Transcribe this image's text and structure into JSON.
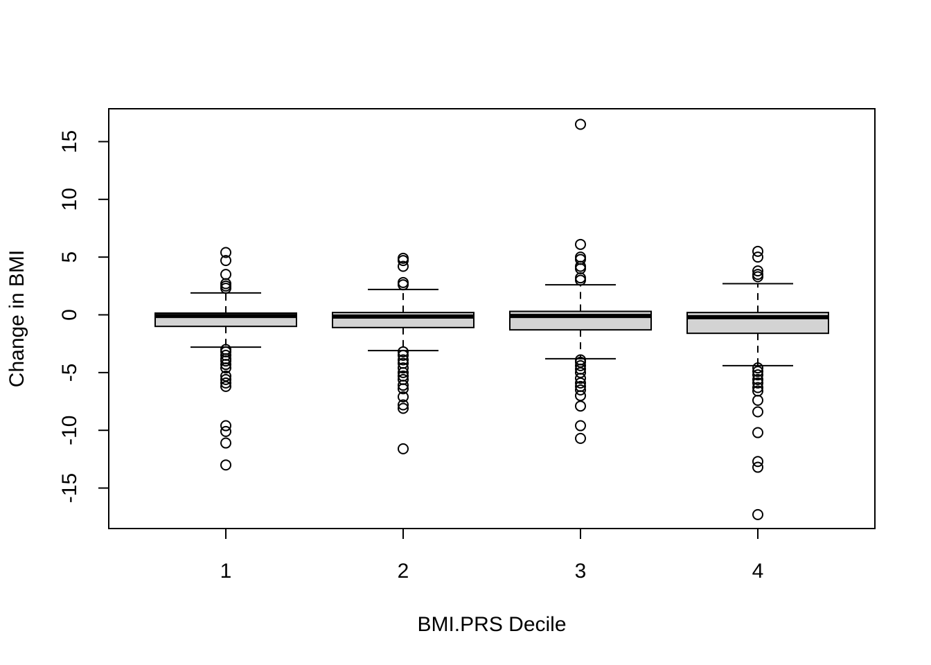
{
  "chart_data": {
    "type": "boxplot",
    "title": "",
    "xlabel": "BMI.PRS Decile",
    "ylabel": "Change in BMI",
    "categories": [
      "1",
      "2",
      "3",
      "4"
    ],
    "ylim": [
      -18.5,
      18
    ],
    "yticks": [
      -15,
      -10,
      -5,
      0,
      5,
      10,
      15
    ],
    "ytick_labels": [
      "-15",
      "-10",
      "-5",
      "0",
      "5",
      "10",
      "15"
    ],
    "grid": false,
    "box_fill": "#d3d3d3",
    "boxes": [
      {
        "category": "1",
        "whisker_low": -2.8,
        "q1": -1.0,
        "median": -0.1,
        "q3": 0.15,
        "whisker_high": 1.9,
        "outliers": [
          5.4,
          4.7,
          3.5,
          2.7,
          2.5,
          2.3,
          -3.0,
          -3.2,
          -3.5,
          -3.8,
          -4.0,
          -4.3,
          -4.6,
          -5.3,
          -5.6,
          -5.9,
          -6.2,
          -9.6,
          -10.1,
          -11.1,
          -13.0
        ]
      },
      {
        "category": "2",
        "whisker_low": -3.1,
        "q1": -1.1,
        "median": -0.15,
        "q3": 0.2,
        "whisker_high": 2.2,
        "outliers": [
          4.9,
          4.7,
          4.2,
          2.8,
          2.6,
          -3.2,
          -3.5,
          -3.9,
          -4.2,
          -4.6,
          -5.0,
          -5.3,
          -5.6,
          -6.1,
          -6.4,
          -7.1,
          -7.8,
          -8.1,
          -11.6
        ]
      },
      {
        "category": "3",
        "whisker_low": -3.8,
        "q1": -1.3,
        "median": -0.1,
        "q3": 0.3,
        "whisker_high": 2.6,
        "outliers": [
          16.5,
          6.1,
          5.0,
          4.8,
          4.2,
          4.0,
          3.2,
          3.0,
          -3.9,
          -4.1,
          -4.4,
          -4.7,
          -5.0,
          -5.5,
          -5.9,
          -6.2,
          -6.5,
          -7.0,
          -7.9,
          -9.6,
          -10.7
        ]
      },
      {
        "category": "4",
        "whisker_low": -4.4,
        "q1": -1.6,
        "median": -0.2,
        "q3": 0.2,
        "whisker_high": 2.7,
        "outliers": [
          5.5,
          5.0,
          3.8,
          3.5,
          3.3,
          -4.6,
          -4.9,
          -5.2,
          -5.6,
          -5.9,
          -6.3,
          -6.6,
          -7.4,
          -8.4,
          -10.2,
          -12.7,
          -13.2,
          -17.3
        ]
      }
    ]
  }
}
